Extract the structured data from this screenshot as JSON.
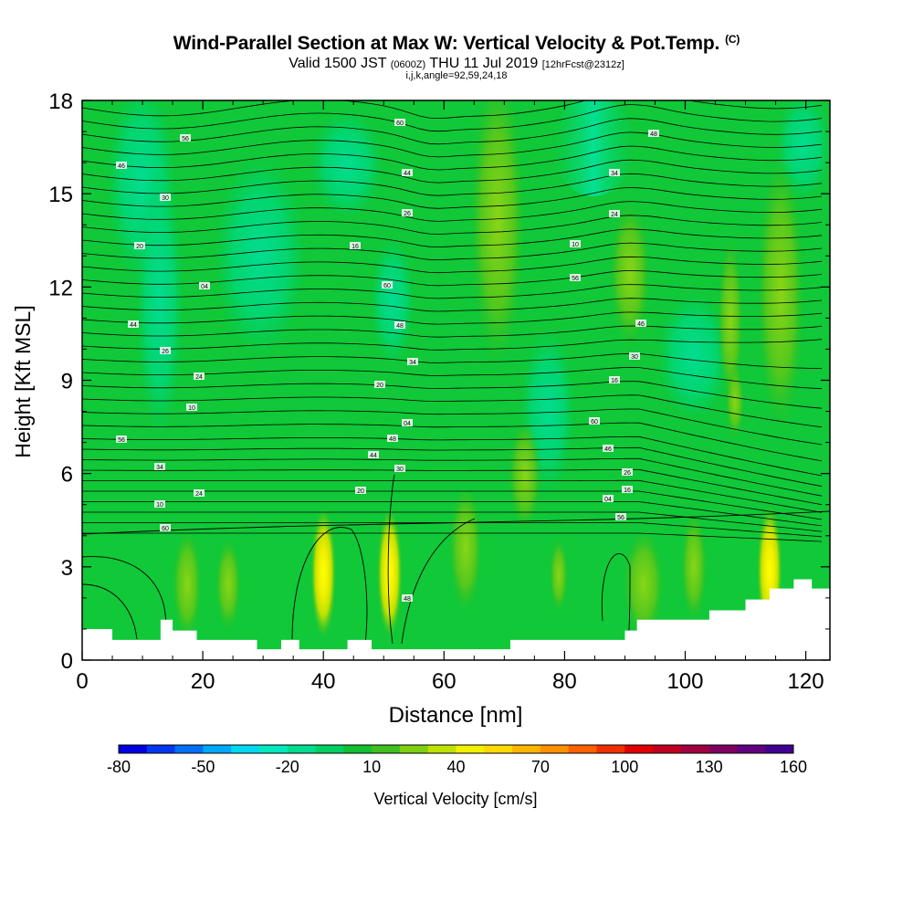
{
  "header": {
    "title": "Wind-Parallel Section at Max W: Vertical Velocity & Pot.Temp.",
    "copyright": "(C)",
    "valid_prefix": "Valid 1500 JST",
    "valid_utc": "(0600Z)",
    "valid_date": "THU 11 Jul 2019",
    "forecast": "[12hrFcst@2312z]",
    "indices": "i,j,k,angle=92,59,24,18"
  },
  "chart_data": {
    "type": "heatmap",
    "title": "Wind-Parallel Section at Max W: Vertical Velocity & Pot.Temp.",
    "xlabel": "Distance [nm]",
    "ylabel": "Height [Kft MSL]",
    "xlim": [
      0,
      124
    ],
    "ylim": [
      0,
      18
    ],
    "x_ticks": [
      0,
      20,
      40,
      60,
      80,
      100,
      120
    ],
    "y_ticks": [
      0,
      3,
      6,
      9,
      12,
      15,
      18
    ],
    "grid": false,
    "updrafts": [
      {
        "x": 40,
        "y": 2.8,
        "max_cm_s": 40
      },
      {
        "x": 51,
        "y": 2.8,
        "max_cm_s": 40
      },
      {
        "x": 114,
        "y": 2.9,
        "max_cm_s": 40
      }
    ],
    "terrain_kft": [
      [
        0,
        1.0
      ],
      [
        1,
        1.0
      ],
      [
        5,
        0.65
      ],
      [
        12,
        0.65
      ],
      [
        13,
        1.3
      ],
      [
        15,
        0.95
      ],
      [
        19,
        0.65
      ],
      [
        29,
        0.35
      ],
      [
        33,
        0.65
      ],
      [
        36,
        0.35
      ],
      [
        44,
        0.65
      ],
      [
        48,
        0.35
      ],
      [
        71,
        0.65
      ],
      [
        90,
        0.95
      ],
      [
        92,
        1.3
      ],
      [
        100,
        1.3
      ],
      [
        104,
        1.6
      ],
      [
        110,
        1.95
      ],
      [
        114,
        2.3
      ],
      [
        118,
        2.6
      ],
      [
        121,
        2.3
      ],
      [
        124,
        1.95
      ]
    ],
    "isentrope_labels": [
      "60",
      "56",
      "48",
      "46",
      "44",
      "34",
      "30",
      "26",
      "24",
      "20",
      "16",
      "10",
      "04"
    ],
    "colorbar": {
      "label": "Vertical Velocity [cm/s]",
      "tick_labels": [
        "-80",
        "-50",
        "-20",
        "10",
        "40",
        "70",
        "100",
        "130",
        "160"
      ],
      "min": -80,
      "max": 160,
      "step": 10,
      "colors": [
        "#0000e0",
        "#0038f0",
        "#0070f8",
        "#00a8f8",
        "#00d8f0",
        "#00e8c0",
        "#00dc90",
        "#00d060",
        "#10c030",
        "#40c020",
        "#80d010",
        "#c0e000",
        "#f0f000",
        "#ffd800",
        "#ffb400",
        "#ff9000",
        "#ff6000",
        "#f03000",
        "#e00000",
        "#c00020",
        "#a00040",
        "#800060",
        "#600080",
        "#400090"
      ]
    }
  }
}
